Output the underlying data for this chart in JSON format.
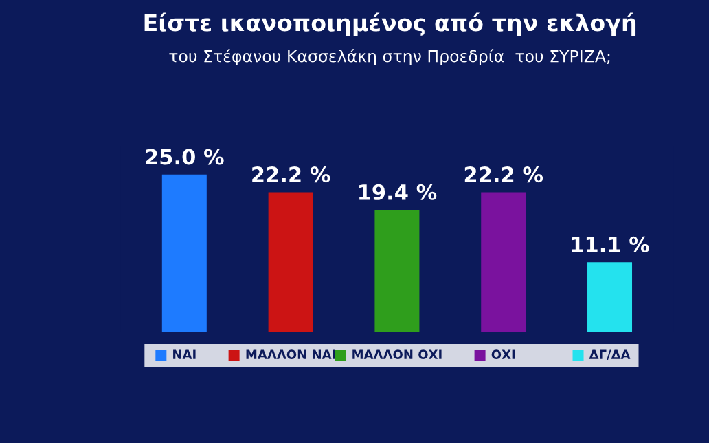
{
  "chart_data": {
    "type": "bar",
    "title": "Είστε ικανοποιημένος από την εκλογή",
    "subtitle": "του Στέφανου Κασσελάκη στην Προεδρία  του ΣΥΡΙΖΑ;",
    "categories": [
      "ΝΑΙ",
      "ΜΑΛΛΟΝ ΝΑΙ",
      "ΜΑΛΛΟΝ ΟΧΙ",
      "ΟΧΙ",
      "ΔΓ/ΔΑ"
    ],
    "values": [
      25.0,
      22.2,
      19.4,
      22.2,
      11.1
    ],
    "colors": [
      "#1e7bff",
      "#cc1414",
      "#2f9e1c",
      "#7a129e",
      "#24e2ee"
    ],
    "value_labels": [
      "25.0 %",
      "22.2 %",
      "19.4 %",
      "22.2 %",
      "11.1 %"
    ]
  }
}
